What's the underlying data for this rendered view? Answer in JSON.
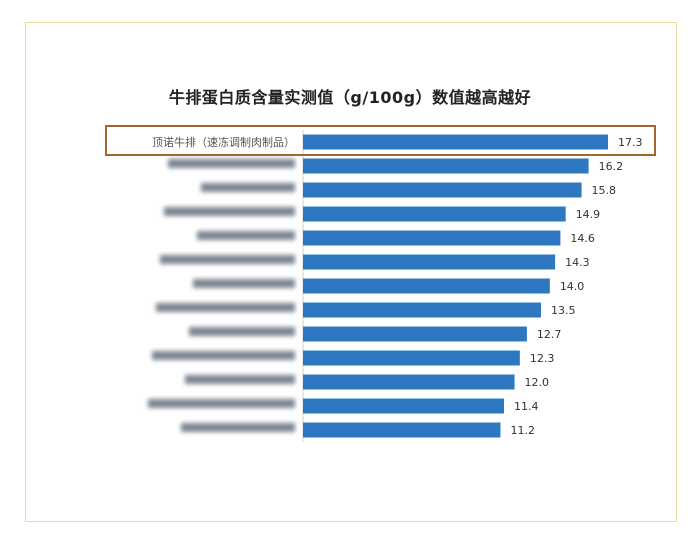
{
  "chart_data": {
    "type": "bar",
    "orientation": "horizontal",
    "title": "牛排蛋白质含量实测值（g/100g）数值越高越好",
    "xlabel": "",
    "ylabel": "",
    "xlim": [
      0,
      17.3
    ],
    "grid": false,
    "bar_color": "#2e78c2",
    "highlight_color": "#a0692a",
    "highlighted_index": 0,
    "categories": [
      "顶诺牛排（速冻调制肉制品）",
      "",
      "",
      "",
      "",
      "",
      "",
      "",
      "",
      "",
      "",
      "",
      ""
    ],
    "values": [
      17.3,
      16.2,
      15.8,
      14.9,
      14.6,
      14.3,
      14.0,
      13.5,
      12.7,
      12.3,
      12.0,
      11.4,
      11.2
    ],
    "value_labels": [
      "17.3",
      "16.2",
      "15.8",
      "14.9",
      "14.6",
      "14.3",
      "14.0",
      "13.5",
      "12.7",
      "12.3",
      "12.0",
      "11.4",
      "11.2"
    ]
  }
}
